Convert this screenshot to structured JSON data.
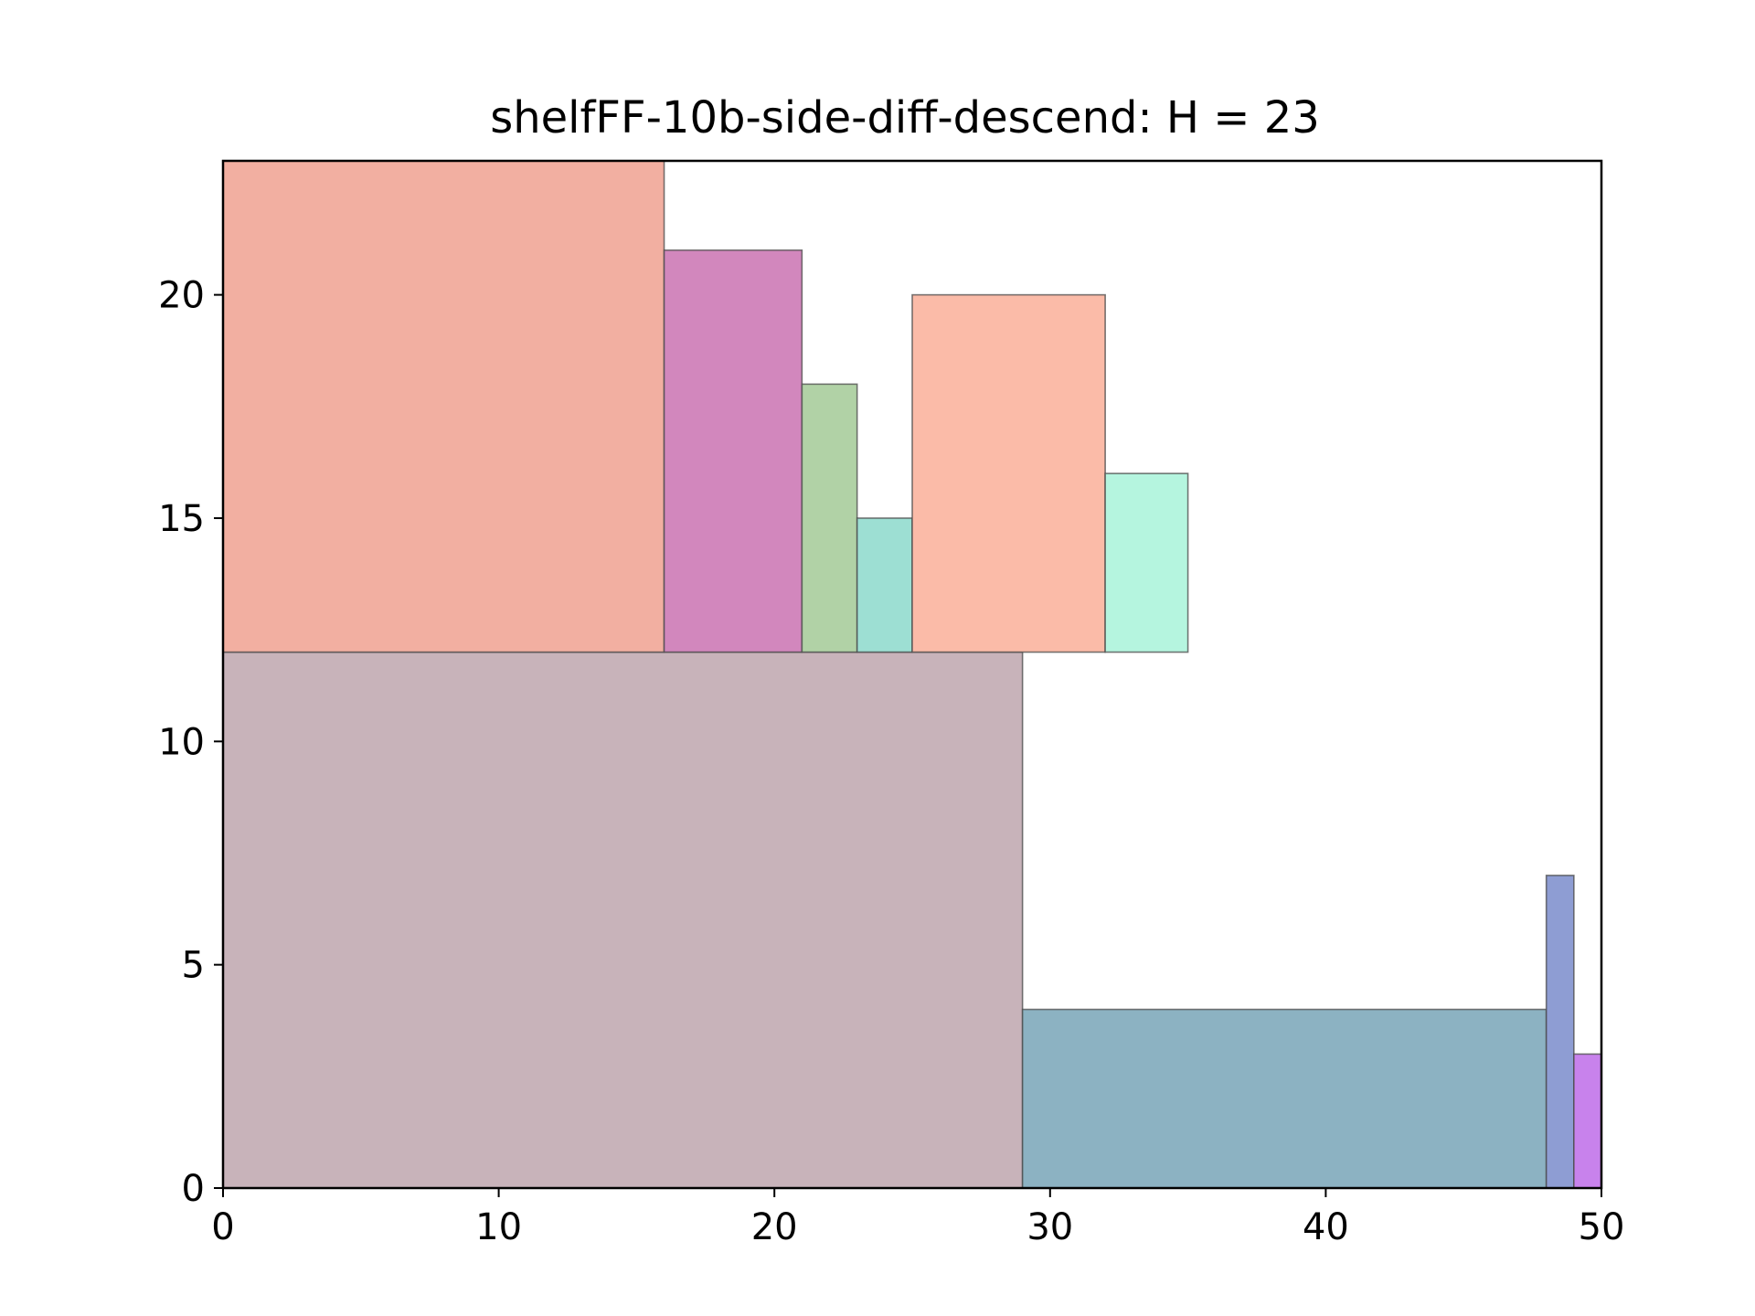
{
  "chart_data": {
    "type": "rectangle-packing",
    "title": "shelfFF-10b-side-diff-descend: H = 23",
    "xlabel": "",
    "ylabel": "",
    "xlim": [
      0,
      50
    ],
    "ylim": [
      0,
      23
    ],
    "xticks": [
      0,
      10,
      20,
      30,
      40,
      50
    ],
    "yticks": [
      0,
      5,
      10,
      15,
      20
    ],
    "grid": false,
    "rectangles": [
      {
        "x": 0,
        "y": 0,
        "w": 29,
        "h": 12,
        "color": "#c8b3ba"
      },
      {
        "x": 29,
        "y": 0,
        "w": 19,
        "h": 4,
        "color": "#8cb2c2"
      },
      {
        "x": 48,
        "y": 0,
        "w": 1,
        "h": 7,
        "color": "#8e9dd3"
      },
      {
        "x": 49,
        "y": 0,
        "w": 1,
        "h": 3,
        "color": "#c882ec"
      },
      {
        "x": 0,
        "y": 12,
        "w": 16,
        "h": 11,
        "color": "#f2afa1"
      },
      {
        "x": 16,
        "y": 12,
        "w": 5,
        "h": 9,
        "color": "#d287bd"
      },
      {
        "x": 21,
        "y": 12,
        "w": 2,
        "h": 6,
        "color": "#b1d2a6"
      },
      {
        "x": 23,
        "y": 12,
        "w": 2,
        "h": 3,
        "color": "#9ddfd3"
      },
      {
        "x": 25,
        "y": 12,
        "w": 7,
        "h": 8,
        "color": "#fbbba8"
      },
      {
        "x": 32,
        "y": 12,
        "w": 3,
        "h": 4,
        "color": "#b5f5df"
      }
    ]
  }
}
